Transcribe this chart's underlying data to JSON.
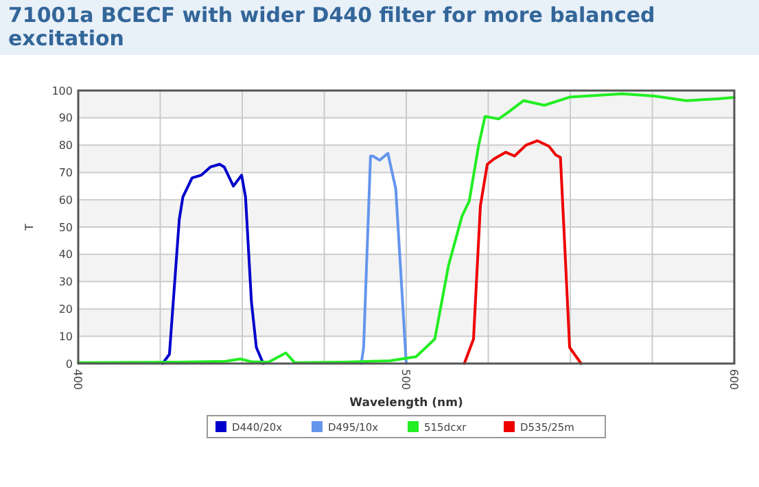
{
  "chart_data": {
    "type": "line",
    "title": "71001a BCECF with wider D440 filter for more balanced excitation",
    "xlabel": "Wavelength (nm)",
    "ylabel": "T",
    "xlim": [
      400,
      600
    ],
    "xticks": [
      400,
      {
        "value": 425,
        "label": null
      },
      {
        "value": 450,
        "label": null
      },
      {
        "value": 475,
        "label": null
      },
      500,
      {
        "value": 525,
        "label": null
      },
      {
        "value": 550,
        "label": null
      },
      {
        "value": 575,
        "label": null
      },
      600
    ],
    "ylim": [
      0,
      100
    ],
    "yticks": [
      0,
      10,
      20,
      30,
      40,
      50,
      60,
      70,
      80,
      90,
      100
    ],
    "grid": true,
    "legend": "bottom",
    "marker": "none",
    "line_style": "solid",
    "series": [
      {
        "name": "D440/20x",
        "color": "#0000cc",
        "x": [
          425.7,
          427.8,
          430.8,
          431.9,
          434.7,
          437.5,
          440.3,
          443.1,
          444.5,
          447.3,
          449.8,
          451,
          452.8,
          454.3,
          456.4
        ],
        "values": [
          0,
          3.4,
          52.8,
          61,
          68,
          69,
          72,
          73,
          72,
          65,
          69,
          61,
          22.6,
          5.9,
          0
        ]
      },
      {
        "name": "D495/10x",
        "color": "#6495ed",
        "x": [
          486.3,
          487,
          489.1,
          489.8,
          491.9,
          494.4,
          496.8,
          498.2,
          500
        ],
        "values": [
          0,
          6,
          76,
          76,
          74.5,
          77,
          64,
          36,
          0
        ]
      },
      {
        "name": "515dcxr",
        "color": "#22ee22",
        "x": [
          400,
          430,
          445,
          449.4,
          453,
          458,
          463.3,
          466,
          480,
          495,
          503,
          508.7,
          512.9,
          517,
          519.2,
          522,
          524,
          528.2,
          531,
          535.8,
          542.1,
          549.8,
          565.8,
          575.6,
          585.4,
          595.1,
          600
        ],
        "values": [
          0.3,
          0.5,
          0.8,
          1.7,
          0.6,
          0.5,
          3.9,
          0.3,
          0.5,
          1,
          2.5,
          9,
          36,
          54,
          59.5,
          79.5,
          90.5,
          89.6,
          92,
          96.3,
          94.6,
          97.6,
          98.8,
          98,
          96.3,
          97,
          97.5
        ]
      },
      {
        "name": "D535/25m",
        "color": "#ee0000",
        "x": [
          517.7,
          520.5,
          522.6,
          524.7,
          526.8,
          530.3,
          533,
          536.5,
          540,
          543.5,
          545.6,
          547,
          548.4,
          549.8,
          553.3
        ],
        "values": [
          0,
          9,
          57.8,
          73,
          75,
          77.4,
          76,
          80,
          81.6,
          79.6,
          76.4,
          75.5,
          41,
          5.9,
          0
        ]
      }
    ]
  }
}
